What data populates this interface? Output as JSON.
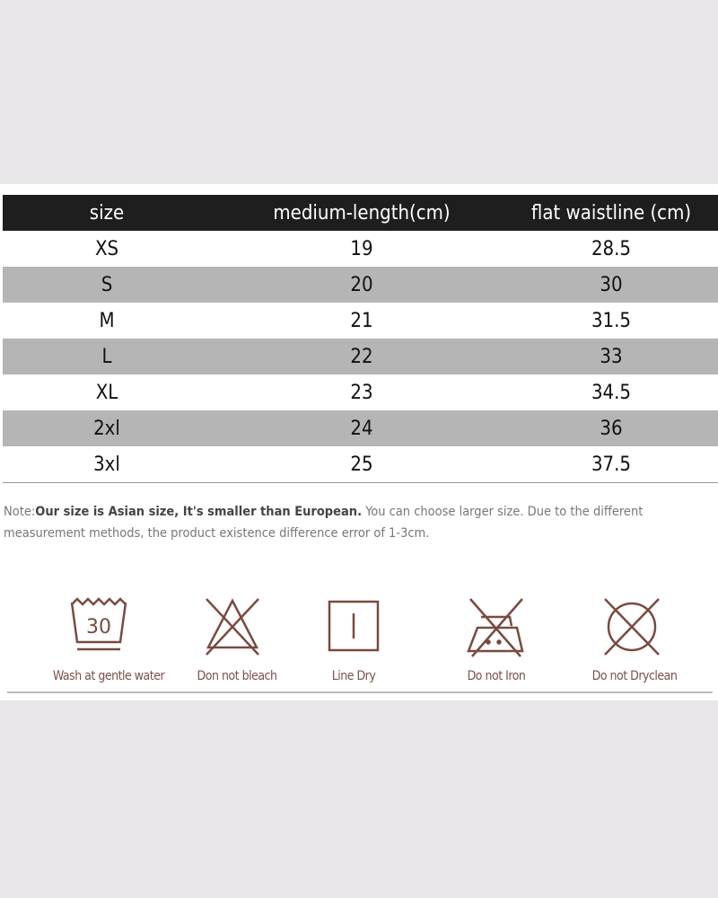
{
  "table": {
    "headers": [
      "size",
      "medium-length(cm)",
      "flat waistline  (cm)"
    ],
    "rows": [
      [
        "XS",
        "19",
        "28.5"
      ],
      [
        "S",
        "20",
        "30"
      ],
      [
        "M",
        "21",
        "31.5"
      ],
      [
        "L",
        "22",
        "33"
      ],
      [
        "XL",
        "23",
        "34.5"
      ],
      [
        "2xl",
        "24",
        "36"
      ],
      [
        "3xl",
        "25",
        "37.5"
      ]
    ]
  },
  "note": {
    "prefix": "Note:",
    "bold": "Our size is Asian size, It's smaller than European.",
    "rest": " You can choose larger size. Due to the different measurement methods, the product existence difference error of 1-3cm."
  },
  "care": {
    "color": "#7a4a3f",
    "items": [
      {
        "icon": "wash-30-icon",
        "label": "Wash at gentle water",
        "temp": "30"
      },
      {
        "icon": "no-bleach-icon",
        "label": "Don not bleach"
      },
      {
        "icon": "line-dry-icon",
        "label": "Line Dry"
      },
      {
        "icon": "no-iron-icon",
        "label": "Do not Iron"
      },
      {
        "icon": "no-dryclean-icon",
        "label": "Do not Dryclean"
      }
    ]
  }
}
